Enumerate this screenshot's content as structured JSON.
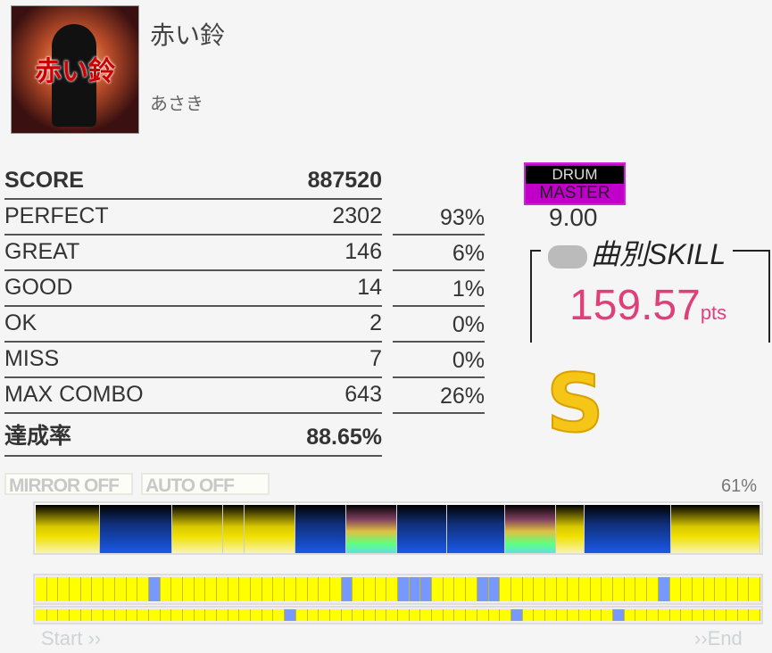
{
  "song": {
    "title": "赤い鈴",
    "artist": "あさき",
    "jacket_text": "赤い鈴"
  },
  "results": {
    "score_label": "SCORE",
    "score": "887520",
    "rows": [
      {
        "label": "PERFECT",
        "value": "2302",
        "pct": "93%"
      },
      {
        "label": "GREAT",
        "value": "146",
        "pct": "6%"
      },
      {
        "label": "GOOD",
        "value": "14",
        "pct": "1%"
      },
      {
        "label": "OK",
        "value": "2",
        "pct": "0%"
      },
      {
        "label": "MISS",
        "value": "7",
        "pct": "0%"
      },
      {
        "label": "MAX COMBO",
        "value": "643",
        "pct": "26%"
      }
    ],
    "achievement_label": "達成率",
    "achievement": "88.65%"
  },
  "difficulty": {
    "part": "DRUM",
    "level_name": "MASTER",
    "level": "9.00",
    "color": "#c000c8"
  },
  "skill": {
    "header": "曲別SKILL",
    "value": "159.57",
    "unit": "pts",
    "color": "#e0407a"
  },
  "rank": "S",
  "options": {
    "mirror": "MIRROR OFF",
    "auto": "AUTO OFF"
  },
  "gauge": {
    "percent": "61%",
    "segments": [
      "yellow",
      "blue",
      "yellow",
      "yellow",
      "yellow",
      "blue",
      "rainbow",
      "blue",
      "blue",
      "rainbow",
      "yellow",
      "blue",
      "yellow"
    ]
  },
  "timeline": {
    "cells_per_row": 64,
    "row1_blue": [
      10,
      27,
      32,
      33,
      34,
      39,
      40,
      55
    ],
    "row2_blue": [
      22,
      42,
      51
    ],
    "start": "Start ››",
    "end": "››End"
  }
}
